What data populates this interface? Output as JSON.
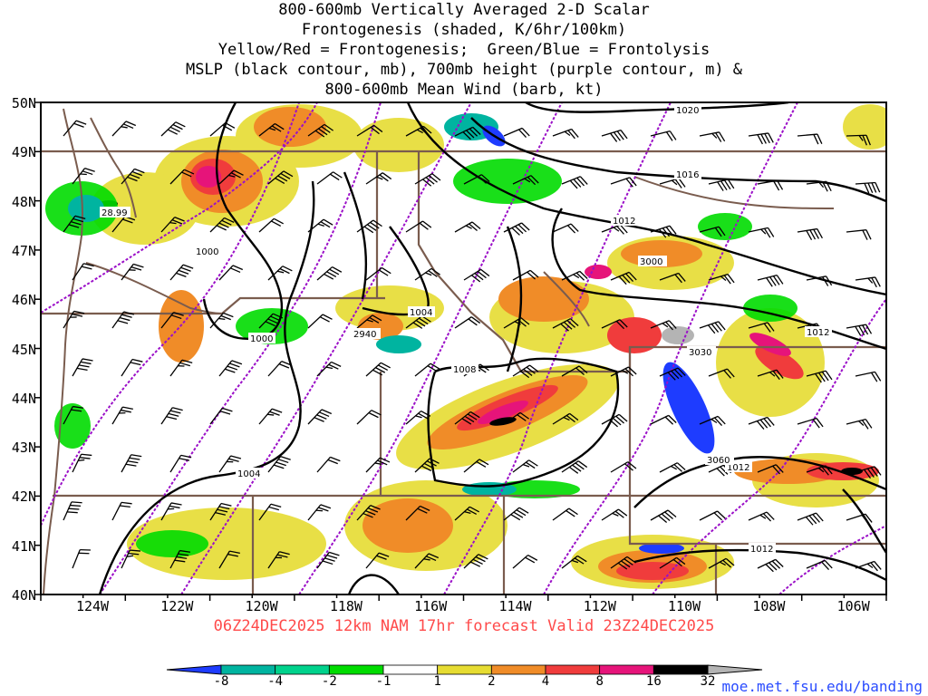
{
  "title": {
    "lines": [
      "800-600mb Vertically Averaged 2-D Scalar",
      "Frontogenesis (shaded, K/6hr/100km)",
      "Yellow/Red = Frontogenesis;  Green/Blue = Frontolysis",
      "MSLP (black contour, mb), 700mb height (purple contour, m) &",
      "800-600mb Mean Wind (barb, kt)"
    ]
  },
  "axes": {
    "lat_labels": [
      "50N",
      "49N",
      "48N",
      "47N",
      "46N",
      "45N",
      "44N",
      "43N",
      "42N",
      "41N",
      "40N"
    ],
    "lon_labels": [
      "124W",
      "122W",
      "120W",
      "118W",
      "116W",
      "114W",
      "112W",
      "110W",
      "108W",
      "106W"
    ],
    "lat_range": [
      40,
      50
    ],
    "lon_range": [
      -125,
      -105
    ]
  },
  "run_info": "06Z24DEC2025 12km NAM 17hr forecast Valid 23Z24DEC2025",
  "colorbar": {
    "labels": [
      "-8",
      "-4",
      "-2",
      "-1",
      "1",
      "2",
      "4",
      "8",
      "16",
      "32"
    ],
    "colors": [
      "#1e3cff",
      "#00b4a0",
      "#00d28c",
      "#00dc00",
      "#ffffff",
      "#e6dc32",
      "#f08c28",
      "#f03c3c",
      "#e6147a",
      "#000000",
      "#b4b4b4"
    ]
  },
  "contours": {
    "mslp_labels": [
      "1020",
      "1016",
      "1012",
      "1012",
      "1012",
      "1008",
      "1004",
      "1004",
      "1000",
      "1000",
      "1012",
      "28.99"
    ],
    "height_labels": [
      "3000",
      "3030",
      "3060",
      "2940"
    ]
  },
  "credit": "moe.met.fsu.edu/banding"
}
